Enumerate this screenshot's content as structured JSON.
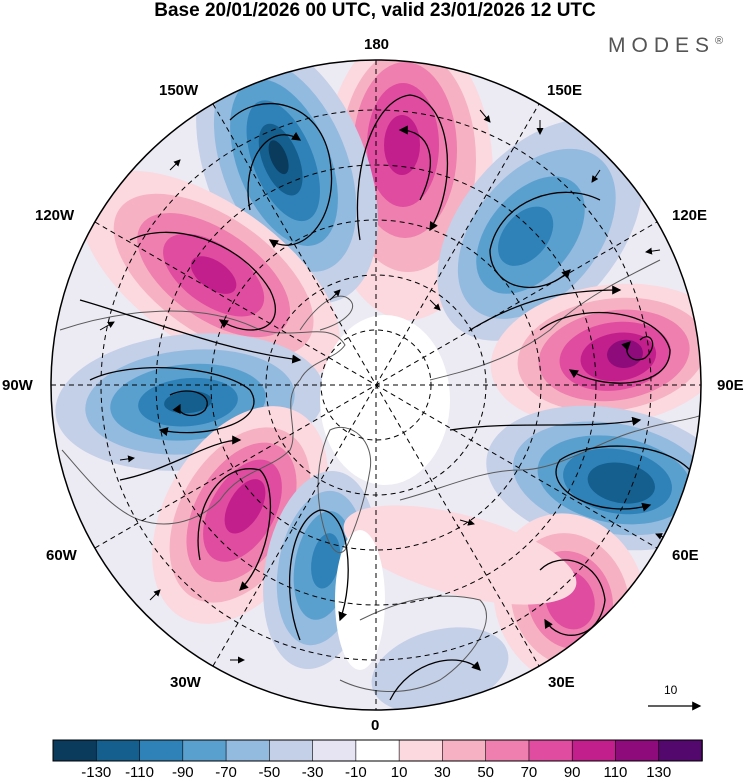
{
  "title": "Base 20/01/2026 00 UTC, valid 23/01/2026 12 UTC",
  "brand": "MODES",
  "brand_mark": "®",
  "longitude_labels": {
    "l180": "180",
    "l150e": "150E",
    "l120e": "120E",
    "l90e": "90E",
    "l60e": "60E",
    "l30e": "30E",
    "l0": "0",
    "l30w": "30W",
    "l60w": "60W",
    "l90w": "90W",
    "l120w": "120W",
    "l150w": "150W"
  },
  "vector_reference": "10",
  "colorbar": {
    "ticks": [
      "-130",
      "-110",
      "-90",
      "-70",
      "-50",
      "-30",
      "-10",
      "10",
      "30",
      "50",
      "70",
      "90",
      "110",
      "130"
    ],
    "colors": [
      "#0a3a5c",
      "#155f8f",
      "#2f82b8",
      "#5aa0cf",
      "#93badf",
      "#c4cfe8",
      "#e6e4f3",
      "#ffffff",
      "#fbd9df",
      "#f6b1c3",
      "#ee7fae",
      "#e04c9f",
      "#c21f8c",
      "#8d0b7a",
      "#52086c"
    ]
  },
  "colors": {
    "land_outline": "#5a5a5a",
    "grid": "#000000",
    "stream": "#000000"
  }
}
